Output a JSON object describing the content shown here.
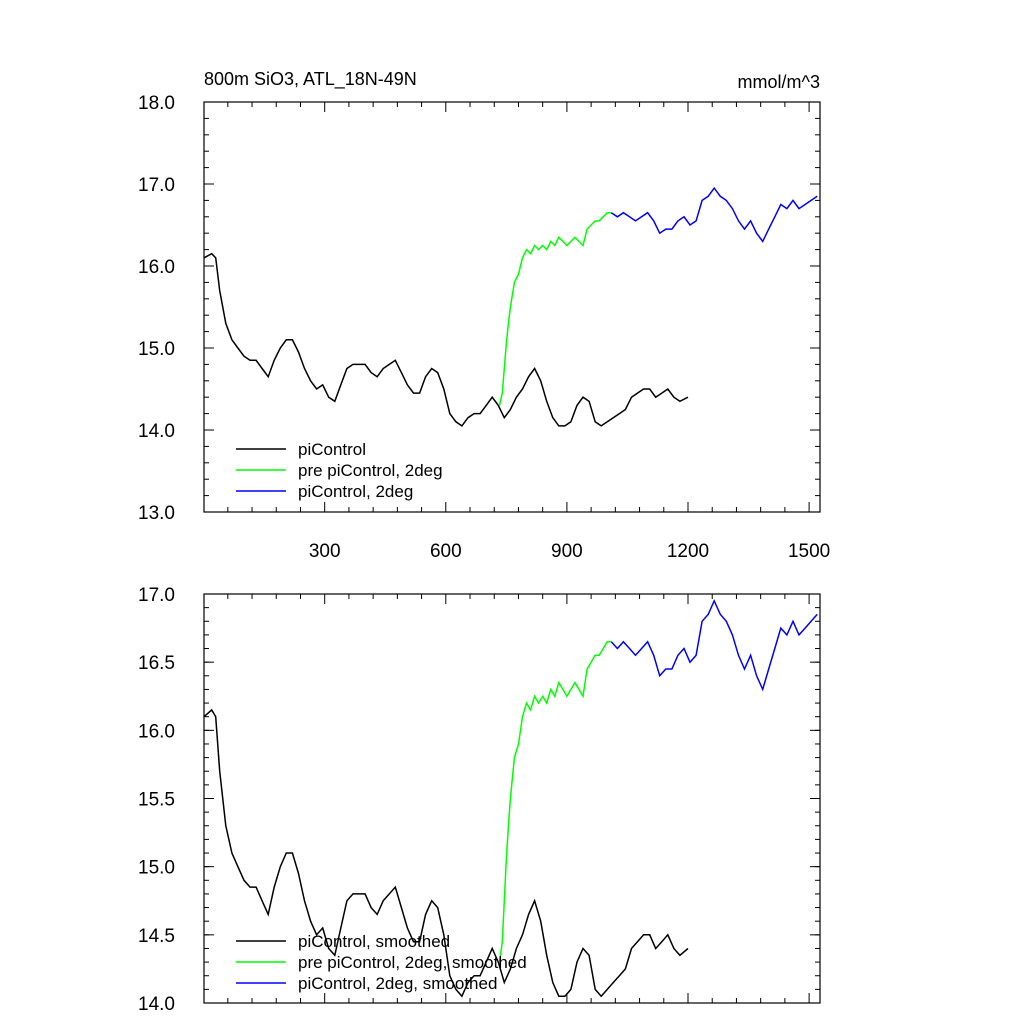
{
  "chart_data": [
    {
      "type": "line",
      "title": "800m SiO3, ATL_18N-49N",
      "units": "mmol/m^3",
      "xlim": [
        1,
        1527
      ],
      "ylim": [
        13.0,
        18.0
      ],
      "xticks": [
        300,
        600,
        900,
        1200,
        1500
      ],
      "yticks": [
        13.0,
        14.0,
        15.0,
        16.0,
        17.0,
        18.0
      ],
      "xtick_labels": [
        "300",
        "600",
        "900",
        "1200",
        "1500"
      ],
      "ytick_labels": [
        "13.0",
        "14.0",
        "15.0",
        "16.0",
        "17.0",
        "18.0"
      ],
      "show_x_tick_labels": true,
      "legend_position": "bottom-left",
      "series": [
        {
          "name": "piControl",
          "color": "#000000",
          "x": [
            1,
            20,
            30,
            40,
            55,
            70,
            85,
            100,
            115,
            130,
            145,
            160,
            175,
            190,
            205,
            220,
            235,
            250,
            265,
            280,
            295,
            310,
            325,
            340,
            355,
            370,
            385,
            400,
            415,
            430,
            445,
            460,
            475,
            490,
            505,
            520,
            535,
            550,
            565,
            580,
            595,
            610,
            625,
            640,
            655,
            670,
            685,
            700,
            715,
            730,
            745,
            760,
            775,
            790,
            805,
            820,
            835,
            850,
            865,
            880,
            895,
            910,
            925,
            940,
            955,
            970,
            985,
            1000,
            1015,
            1030,
            1045,
            1060,
            1075,
            1090,
            1105,
            1120,
            1135,
            1150,
            1165,
            1180,
            1200
          ],
          "y": [
            16.1,
            16.15,
            16.1,
            15.7,
            15.3,
            15.1,
            15.0,
            14.9,
            14.85,
            14.85,
            14.75,
            14.65,
            14.85,
            15.0,
            15.1,
            15.1,
            14.95,
            14.75,
            14.6,
            14.5,
            14.55,
            14.4,
            14.35,
            14.55,
            14.75,
            14.8,
            14.8,
            14.8,
            14.7,
            14.65,
            14.75,
            14.8,
            14.85,
            14.7,
            14.55,
            14.45,
            14.45,
            14.65,
            14.75,
            14.7,
            14.5,
            14.2,
            14.1,
            14.05,
            14.15,
            14.2,
            14.2,
            14.3,
            14.4,
            14.3,
            14.15,
            14.25,
            14.4,
            14.5,
            14.65,
            14.75,
            14.6,
            14.35,
            14.15,
            14.05,
            14.05,
            14.1,
            14.3,
            14.4,
            14.35,
            14.1,
            14.05,
            14.1,
            14.15,
            14.2,
            14.25,
            14.4,
            14.45,
            14.5,
            14.5,
            14.4,
            14.45,
            14.5,
            14.4,
            14.35,
            14.4
          ]
        },
        {
          "name": "pre piControl, 2deg",
          "color": "#00ff00",
          "x": [
            733,
            740,
            745,
            750,
            755,
            760,
            765,
            770,
            780,
            790,
            800,
            810,
            820,
            830,
            840,
            850,
            860,
            870,
            880,
            890,
            900,
            910,
            920,
            930,
            940,
            950,
            960,
            970,
            980,
            990,
            1000,
            1010
          ],
          "y": [
            14.3,
            14.45,
            14.75,
            15.05,
            15.3,
            15.5,
            15.65,
            15.8,
            15.9,
            16.1,
            16.2,
            16.15,
            16.25,
            16.2,
            16.25,
            16.2,
            16.3,
            16.25,
            16.35,
            16.3,
            16.25,
            16.3,
            16.35,
            16.3,
            16.25,
            16.45,
            16.5,
            16.55,
            16.55,
            16.6,
            16.65,
            16.65
          ]
        },
        {
          "name": "piControl, 2deg",
          "color": "#0000ff",
          "x": [
            1010,
            1025,
            1040,
            1055,
            1070,
            1085,
            1100,
            1115,
            1130,
            1145,
            1160,
            1175,
            1190,
            1205,
            1220,
            1235,
            1250,
            1265,
            1280,
            1295,
            1310,
            1325,
            1340,
            1355,
            1370,
            1385,
            1400,
            1415,
            1430,
            1445,
            1460,
            1475,
            1490,
            1505,
            1520
          ],
          "y": [
            16.65,
            16.6,
            16.65,
            16.6,
            16.55,
            16.6,
            16.65,
            16.55,
            16.4,
            16.45,
            16.45,
            16.55,
            16.6,
            16.5,
            16.55,
            16.8,
            16.85,
            16.95,
            16.85,
            16.8,
            16.7,
            16.55,
            16.45,
            16.55,
            16.4,
            16.3,
            16.45,
            16.6,
            16.75,
            16.7,
            16.8,
            16.7,
            16.75,
            16.8,
            16.85
          ]
        }
      ]
    },
    {
      "type": "line",
      "title": "",
      "xlim": [
        1,
        1527
      ],
      "ylim": [
        14.0,
        17.0
      ],
      "xticks": [
        300,
        600,
        900,
        1200,
        1500
      ],
      "yticks": [
        14.0,
        14.5,
        15.0,
        15.5,
        16.0,
        16.5,
        17.0
      ],
      "xtick_labels": [],
      "ytick_labels": [
        "14.0",
        "14.5",
        "15.0",
        "15.5",
        "16.0",
        "16.5",
        "17.0"
      ],
      "show_x_tick_labels": false,
      "legend_position": "bottom-left",
      "series": [
        {
          "name": "piControl, smoothed",
          "color": "#000000",
          "x": [
            1,
            20,
            30,
            40,
            55,
            70,
            85,
            100,
            115,
            130,
            145,
            160,
            175,
            190,
            205,
            220,
            235,
            250,
            265,
            280,
            295,
            310,
            325,
            340,
            355,
            370,
            385,
            400,
            415,
            430,
            445,
            460,
            475,
            490,
            505,
            520,
            535,
            550,
            565,
            580,
            595,
            610,
            625,
            640,
            655,
            670,
            685,
            700,
            715,
            730,
            745,
            760,
            775,
            790,
            805,
            820,
            835,
            850,
            865,
            880,
            895,
            910,
            925,
            940,
            955,
            970,
            985,
            1000,
            1015,
            1030,
            1045,
            1060,
            1075,
            1090,
            1105,
            1120,
            1135,
            1150,
            1165,
            1180,
            1200
          ],
          "y": [
            16.1,
            16.15,
            16.1,
            15.7,
            15.3,
            15.1,
            15.0,
            14.9,
            14.85,
            14.85,
            14.75,
            14.65,
            14.85,
            15.0,
            15.1,
            15.1,
            14.95,
            14.75,
            14.6,
            14.5,
            14.55,
            14.4,
            14.35,
            14.55,
            14.75,
            14.8,
            14.8,
            14.8,
            14.7,
            14.65,
            14.75,
            14.8,
            14.85,
            14.7,
            14.55,
            14.45,
            14.45,
            14.65,
            14.75,
            14.7,
            14.5,
            14.2,
            14.1,
            14.05,
            14.15,
            14.2,
            14.2,
            14.3,
            14.4,
            14.3,
            14.15,
            14.25,
            14.4,
            14.5,
            14.65,
            14.75,
            14.6,
            14.35,
            14.15,
            14.05,
            14.05,
            14.1,
            14.3,
            14.4,
            14.35,
            14.1,
            14.05,
            14.1,
            14.15,
            14.2,
            14.25,
            14.4,
            14.45,
            14.5,
            14.5,
            14.4,
            14.45,
            14.5,
            14.4,
            14.35,
            14.4
          ]
        },
        {
          "name": "pre piControl, 2deg, smoothed",
          "color": "#00ff00",
          "x": [
            733,
            740,
            745,
            750,
            755,
            760,
            765,
            770,
            780,
            790,
            800,
            810,
            820,
            830,
            840,
            850,
            860,
            870,
            880,
            890,
            900,
            910,
            920,
            930,
            940,
            950,
            960,
            970,
            980,
            990,
            1000,
            1010
          ],
          "y": [
            14.3,
            14.45,
            14.75,
            15.05,
            15.3,
            15.5,
            15.65,
            15.8,
            15.9,
            16.1,
            16.2,
            16.15,
            16.25,
            16.2,
            16.25,
            16.2,
            16.3,
            16.25,
            16.35,
            16.3,
            16.25,
            16.3,
            16.35,
            16.3,
            16.25,
            16.45,
            16.5,
            16.55,
            16.55,
            16.6,
            16.65,
            16.65
          ]
        },
        {
          "name": "piControl, 2deg, smoothed",
          "color": "#0000ff",
          "x": [
            1010,
            1025,
            1040,
            1055,
            1070,
            1085,
            1100,
            1115,
            1130,
            1145,
            1160,
            1175,
            1190,
            1205,
            1220,
            1235,
            1250,
            1265,
            1280,
            1295,
            1310,
            1325,
            1340,
            1355,
            1370,
            1385,
            1400,
            1415,
            1430,
            1445,
            1460,
            1475,
            1490,
            1505,
            1520
          ],
          "y": [
            16.65,
            16.6,
            16.65,
            16.6,
            16.55,
            16.6,
            16.65,
            16.55,
            16.4,
            16.45,
            16.45,
            16.55,
            16.6,
            16.5,
            16.55,
            16.8,
            16.85,
            16.95,
            16.85,
            16.8,
            16.7,
            16.55,
            16.45,
            16.55,
            16.4,
            16.3,
            16.45,
            16.6,
            16.75,
            16.7,
            16.8,
            16.7,
            16.75,
            16.8,
            16.85
          ]
        }
      ]
    }
  ]
}
